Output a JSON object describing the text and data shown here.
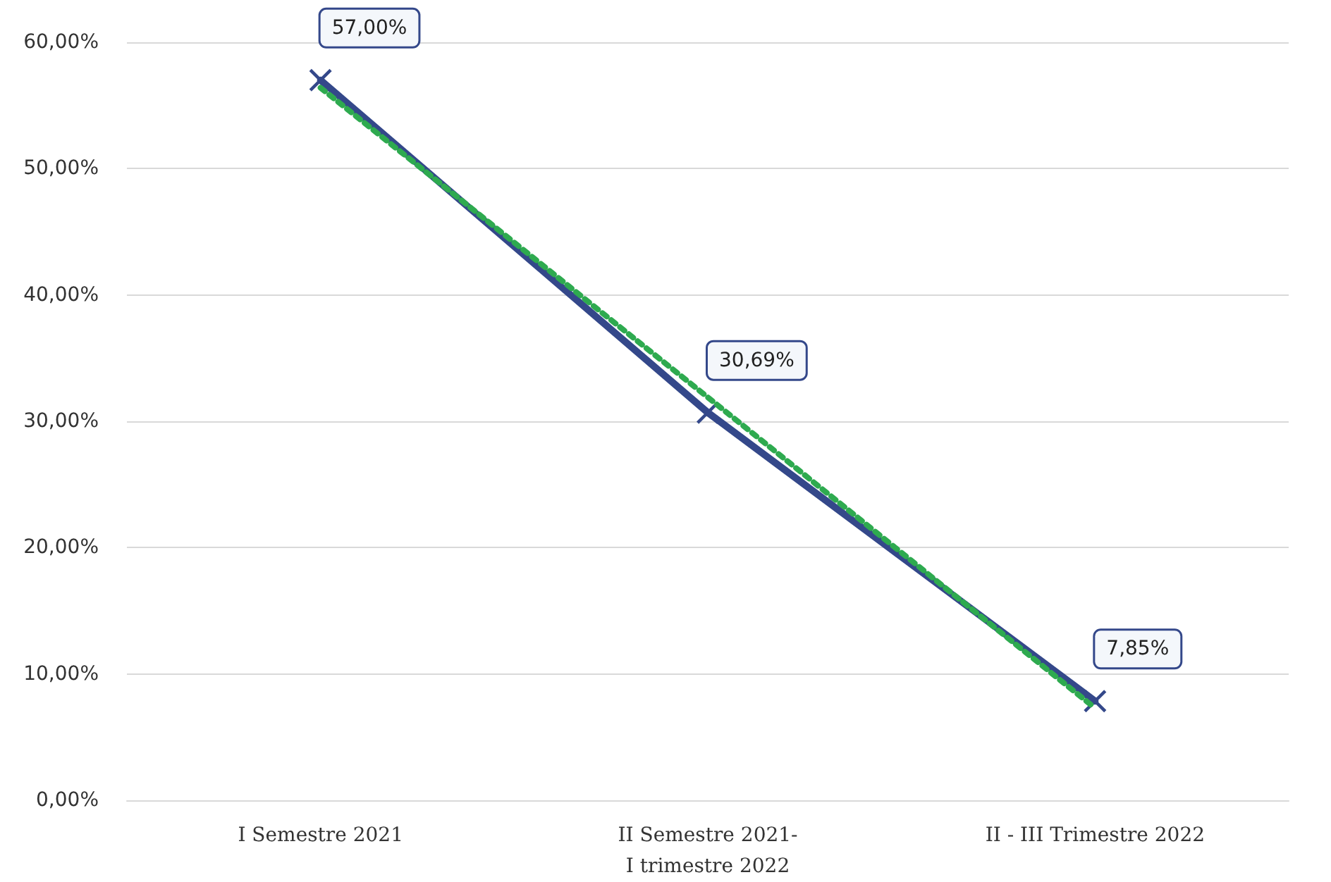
{
  "chart_data": {
    "type": "line",
    "categories": [
      "I Semestre 2021",
      "II Semestre 2021-\nI trimestre 2022",
      "II - III Trimestre 2022"
    ],
    "series": [
      {
        "color": "#34488a",
        "values": [
          57.0,
          30.69,
          7.85
        ],
        "value_labels": [
          "57,00%",
          "30,69%",
          "7,85%"
        ],
        "marker": "cross",
        "line_style": "solid"
      },
      {
        "color": "#2eaa4f",
        "values": [
          56.4,
          31.9,
          7.3
        ],
        "marker": "none",
        "line_style": "dotted"
      }
    ],
    "ylim": [
      0,
      60
    ],
    "yticks": [
      {
        "value": 0,
        "label": "0,00%"
      },
      {
        "value": 10,
        "label": "10,00%"
      },
      {
        "value": 20,
        "label": "20,00%"
      },
      {
        "value": 30,
        "label": "30,00%"
      },
      {
        "value": 40,
        "label": "40,00%"
      },
      {
        "value": 50,
        "label": "50,00%"
      },
      {
        "value": 60,
        "label": "60,00%"
      }
    ],
    "grid": "y"
  }
}
